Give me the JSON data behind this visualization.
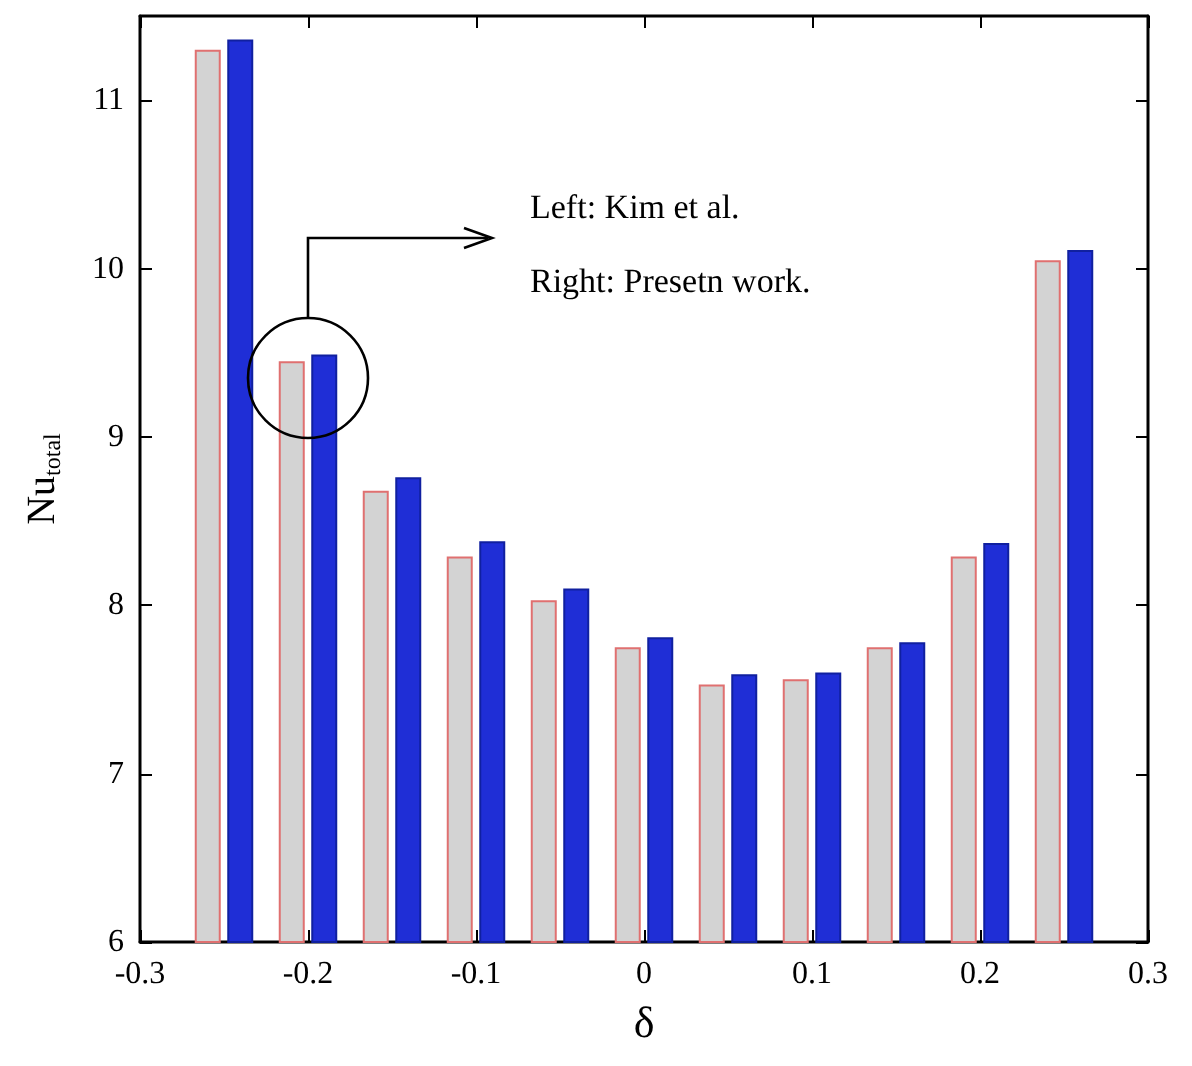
{
  "chart_data": {
    "type": "bar",
    "xlabel": "δ",
    "ylabel": "Nu$_{total}$",
    "x": [
      -0.25,
      -0.2,
      -0.15,
      -0.1,
      -0.05,
      0,
      0.05,
      0.1,
      0.15,
      0.2,
      0.25
    ],
    "series": [
      {
        "color": "#d3d3d3",
        "values": [
          11.3,
          9.45,
          8.68,
          8.29,
          8.03,
          7.75,
          7.53,
          7.56,
          7.75,
          8.29,
          10.05
        ]
      },
      {
        "color": "#1f2ed6",
        "values": [
          11.36,
          9.49,
          8.76,
          8.38,
          8.1,
          7.81,
          7.59,
          7.6,
          7.78,
          8.37,
          10.11
        ]
      }
    ],
    "xlim": [
      -0.3,
      0.3
    ],
    "xticks": [
      -0.3,
      -0.2,
      -0.1,
      0,
      0.1,
      0.2,
      0.3
    ],
    "ylim": [
      6,
      11.5
    ],
    "yticks": [
      6,
      7,
      8,
      9,
      10,
      11
    ],
    "annotations": [
      "Left: Kim et al.",
      "Right: Presetn work."
    ]
  }
}
